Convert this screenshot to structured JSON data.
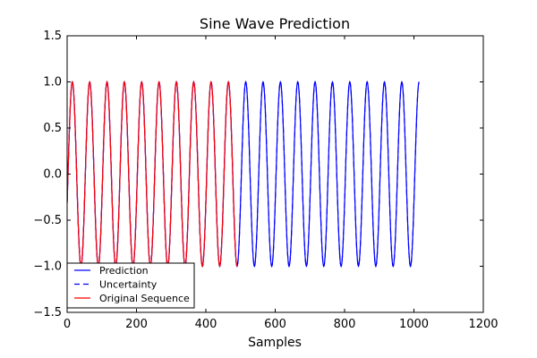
{
  "chart_data": {
    "type": "line",
    "title": "Sine Wave Prediction",
    "xlabel": "Samples",
    "ylabel": "",
    "xlim": [
      0,
      1200
    ],
    "ylim": [
      -1.5,
      1.5
    ],
    "xticks": [
      0,
      200,
      400,
      600,
      800,
      1000,
      1200
    ],
    "yticks": [
      -1.5,
      -1.0,
      -0.5,
      0.0,
      0.5,
      1.0,
      1.5
    ],
    "xtick_labels": [
      "0",
      "200",
      "400",
      "600",
      "800",
      "1000",
      "1200"
    ],
    "ytick_labels": [
      "−1.5",
      "−1.0",
      "−0.5",
      "0.0",
      "0.5",
      "1.0",
      "1.5"
    ],
    "grid": false,
    "legend_position": "lower-left",
    "series": [
      {
        "name": "Prediction",
        "color": "#0000ff",
        "style": "solid",
        "function": "sine",
        "period": 50,
        "amplitude": 1.0,
        "phase_x": 2.5,
        "x_range": [
          0,
          1015
        ]
      },
      {
        "name": "Uncertainty",
        "color": "#0000ff",
        "style": "dashed",
        "function": "sine",
        "period": 50,
        "amplitude": 1.0,
        "phase_x": 2.5,
        "x_range": [
          0,
          1015
        ]
      },
      {
        "name": "Original Sequence",
        "color": "#ff0000",
        "style": "solid",
        "function": "sine",
        "period": 50,
        "amplitude": 1.0,
        "phase_x": 2.5,
        "x_range": [
          0,
          490
        ]
      }
    ]
  }
}
